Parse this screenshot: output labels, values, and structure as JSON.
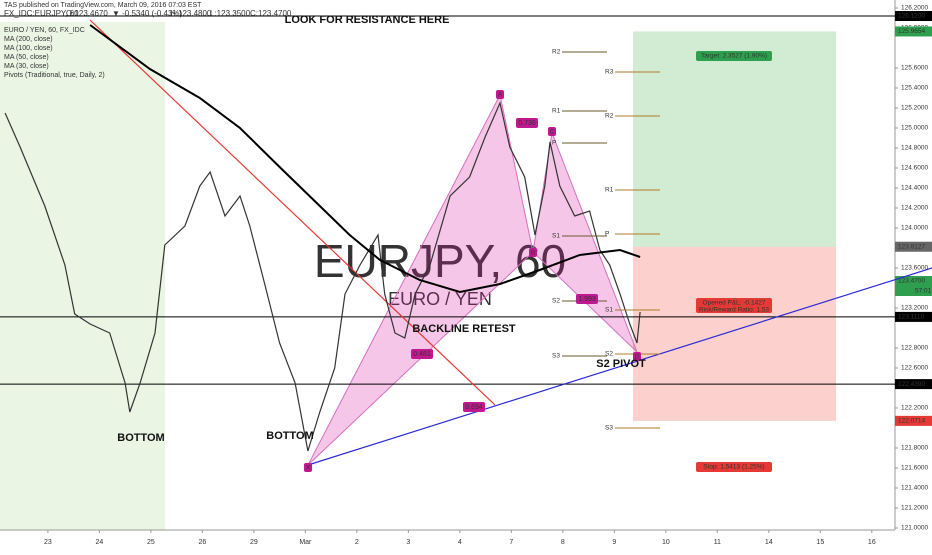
{
  "chart_data": {
    "type": "line",
    "header": "TAS published on TradingView.com, March 09, 2016 07:03 EST",
    "symbol": "FX_IDC:EURJPY, 60",
    "ohlc": [
      "O:123.4670",
      "▼ -0.5340 (-0.43%)",
      "H:123.4800",
      "L:123.3500",
      "C:123.4700"
    ],
    "legend": [
      "EURO / YEN, 60, FX_IDC",
      "MA (200, close)",
      "MA (100, close)",
      "MA (50, close)",
      "MA (30, close)",
      "Pivots (Traditional, true, Daily, 2)"
    ],
    "watermark": [
      "EURJPY, 60",
      "EURO / YEN"
    ],
    "xlim": [
      -0.93,
      16.45
    ],
    "xticks": [
      {
        "value": 0,
        "label": "23"
      },
      {
        "value": 1,
        "label": "24"
      },
      {
        "value": 2,
        "label": "25"
      },
      {
        "value": 3,
        "label": "26"
      },
      {
        "value": 4,
        "label": "29"
      },
      {
        "value": 5,
        "label": "Mar"
      },
      {
        "value": 6,
        "label": "2"
      },
      {
        "value": 7,
        "label": "3"
      },
      {
        "value": 8,
        "label": "4"
      },
      {
        "value": 9,
        "label": "7"
      },
      {
        "value": 10,
        "label": "8"
      },
      {
        "value": 11,
        "label": "9"
      },
      {
        "value": 12,
        "label": "10"
      },
      {
        "value": 13,
        "label": "11"
      },
      {
        "value": 14,
        "label": "14"
      },
      {
        "value": 15,
        "label": "15"
      },
      {
        "value": 16,
        "label": "16"
      }
    ],
    "ylim": [
      121.0,
      126.2
    ],
    "yticks": [
      {
        "value": 126.2,
        "label": "126.2000"
      },
      {
        "value": 126.0,
        "label": "126.0000"
      },
      {
        "value": 125.6,
        "label": "125.6000"
      },
      {
        "value": 125.4,
        "label": "125.4000"
      },
      {
        "value": 125.2,
        "label": "125.2000"
      },
      {
        "value": 125.0,
        "label": "125.0000"
      },
      {
        "value": 124.8,
        "label": "124.8000"
      },
      {
        "value": 124.6,
        "label": "124.6000"
      },
      {
        "value": 124.4,
        "label": "124.4000"
      },
      {
        "value": 124.2,
        "label": "124.2000"
      },
      {
        "value": 124.0,
        "label": "124.0000"
      },
      {
        "value": 123.6,
        "label": "123.6000"
      },
      {
        "value": 123.2,
        "label": "123.2000"
      },
      {
        "value": 122.8,
        "label": "122.8000"
      },
      {
        "value": 122.6,
        "label": "122.6000"
      },
      {
        "value": 122.2,
        "label": "122.2000"
      },
      {
        "value": 121.8,
        "label": "121.8000"
      },
      {
        "value": 121.6,
        "label": "121.6000"
      },
      {
        "value": 121.4,
        "label": "121.4000"
      },
      {
        "value": 121.2,
        "label": "121.2000"
      },
      {
        "value": 121.0,
        "label": "121.0000"
      }
    ],
    "series": [
      {
        "name": "EURJPY",
        "color": "#333333",
        "x": [
          -0.83,
          -0.54,
          -0.06,
          0.33,
          0.52,
          0.82,
          1.2,
          1.5,
          1.59,
          1.79,
          2.08,
          2.27,
          2.66,
          2.95,
          3.15,
          3.44,
          3.73,
          3.92,
          4.21,
          4.5,
          4.8,
          5.05,
          5.28,
          5.57,
          5.77,
          6.06,
          6.41,
          6.54,
          6.74,
          6.93,
          7.13,
          7.42,
          7.81,
          8.19,
          8.49,
          8.78,
          8.97,
          9.26,
          9.46,
          9.65,
          9.75,
          9.94,
          10.23,
          10.52,
          10.72,
          10.91,
          11.11,
          11.3,
          11.44,
          11.5
        ],
        "values": [
          125.15,
          124.81,
          124.22,
          123.63,
          123.14,
          123.04,
          122.95,
          122.45,
          122.16,
          122.45,
          122.95,
          123.83,
          124.02,
          124.42,
          124.56,
          124.12,
          124.32,
          124.02,
          123.44,
          122.85,
          122.45,
          121.77,
          122.16,
          122.6,
          123.34,
          123.63,
          123.93,
          123.34,
          122.95,
          122.9,
          123.34,
          123.63,
          124.32,
          124.51,
          124.91,
          125.25,
          124.81,
          124.51,
          123.93,
          124.42,
          124.86,
          124.42,
          124.12,
          124.17,
          123.78,
          123.63,
          123.34,
          123.04,
          122.85,
          123.16
        ]
      },
      {
        "name": "MA (200, close)",
        "color": "#000000",
        "x": [
          0.82,
          1.98,
          2.95,
          3.73,
          4.5,
          5.28,
          5.86,
          6.45,
          7.22,
          8.0,
          8.78,
          9.55,
          10.33,
          11.11,
          11.5
        ],
        "values": [
          126.03,
          125.59,
          125.3,
          125.0,
          124.61,
          124.22,
          123.93,
          123.68,
          123.48,
          123.36,
          123.44,
          123.58,
          123.73,
          123.78,
          123.71
        ]
      }
    ],
    "levels": [
      {
        "value": 126.12,
        "label": "126.1200",
        "color": "#000000"
      },
      {
        "value": 125.9654,
        "label": "125.9654",
        "color": "#2e9e4f"
      },
      {
        "value": 123.8127,
        "label": "123.8127",
        "color": "#666666"
      },
      {
        "value": 123.47,
        "label": "123.4700",
        "color": "#2e9e4f"
      },
      {
        "value": 123.111,
        "label": "123.1110",
        "color": "#000000"
      },
      {
        "value": 122.439,
        "label": "122.4390",
        "color": "#000000"
      },
      {
        "value": 122.0714,
        "label": "122.0714",
        "color": "#e53935"
      }
    ],
    "countdown": "57:01",
    "annotations": [
      "LOOK FOR RESISTANCE HERE",
      "BOTTOM",
      "BOTTOM",
      "BACKLINE RETEST",
      "S2 PIVOT",
      "Target: 2.3527 (1.90%)",
      "Opened P&L: -0.1427",
      "Risk/Reward Ratio: 1.53",
      "Stop: 1.5413 (1.25%)"
    ],
    "pattern_points": [
      "X",
      "A",
      "B",
      "C",
      "D"
    ],
    "pattern_ratios": [
      "0.736",
      "0.481",
      "1.993",
      "0.694"
    ],
    "pivots": [
      "R2",
      "R1",
      "P",
      "S1",
      "S2",
      "S3",
      "R3",
      "R2",
      "R1",
      "P",
      "S1",
      "S2",
      "S3"
    ]
  }
}
